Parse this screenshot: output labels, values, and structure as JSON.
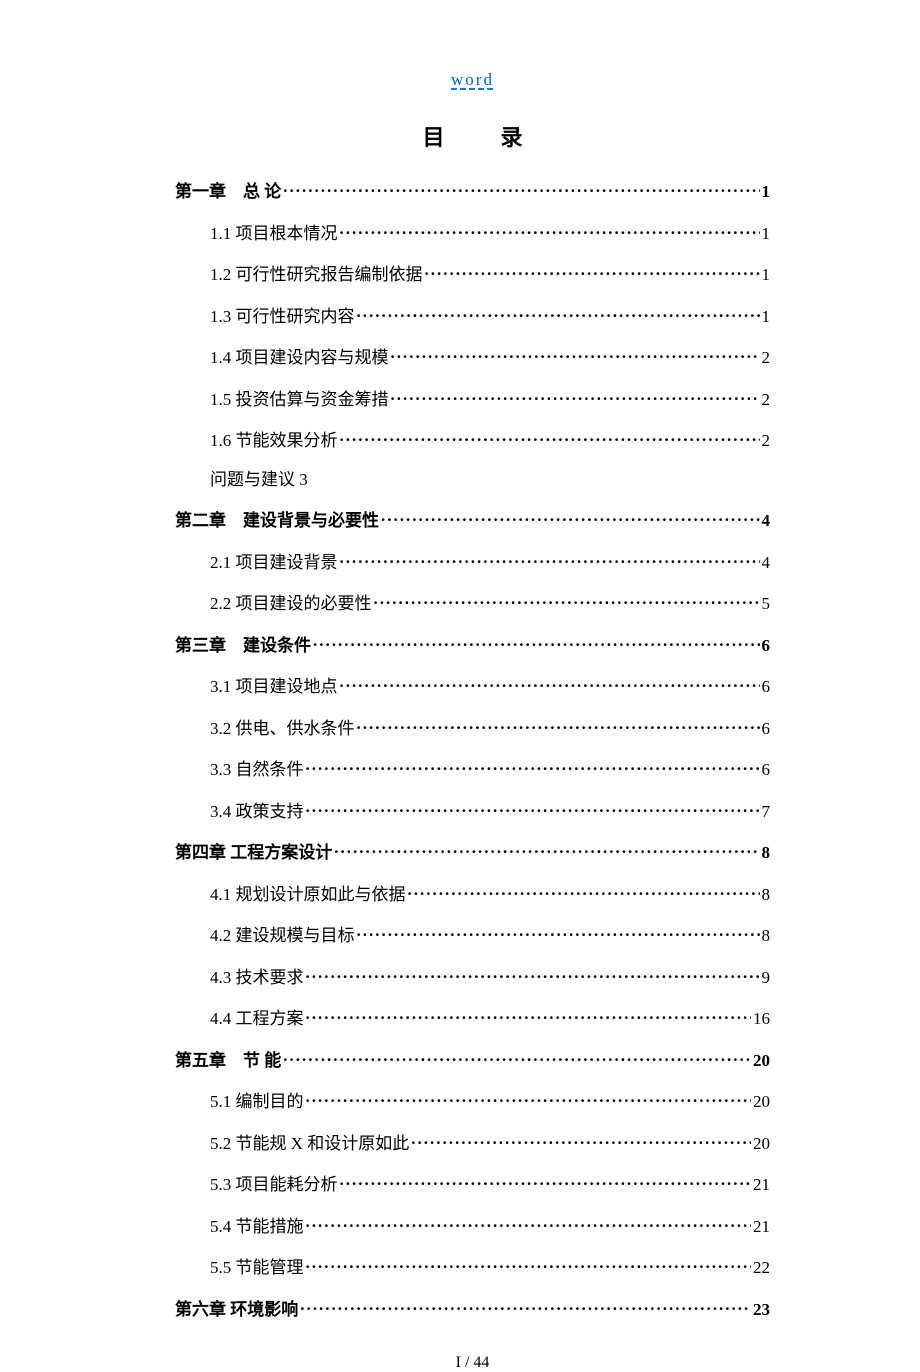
{
  "header": {
    "link_text": "word"
  },
  "title": {
    "char1": "目",
    "char2": "录"
  },
  "toc": [
    {
      "type": "chapter",
      "label": "第一章　总  论",
      "page": "1"
    },
    {
      "type": "section",
      "label": "1.1  项目根本情况",
      "page": "1"
    },
    {
      "type": "section",
      "label": "1.2  可行性研究报告编制依据",
      "page": "1"
    },
    {
      "type": "section",
      "label": "1.3  可行性研究内容",
      "page": "1"
    },
    {
      "type": "section",
      "label": "1.4  项目建设内容与规模",
      "page": "2"
    },
    {
      "type": "section",
      "label": "1.5  投资估算与资金筹措",
      "page": "2"
    },
    {
      "type": "section",
      "label": "1.6  节能效果分析",
      "page": "2"
    },
    {
      "type": "plain",
      "label": "问题与建议 3",
      "page": ""
    },
    {
      "type": "chapter",
      "label": "第二章　建设背景与必要性",
      "page": "4"
    },
    {
      "type": "section",
      "label": "2.1  项目建设背景",
      "page": "4"
    },
    {
      "type": "section",
      "label": "2.2  项目建设的必要性",
      "page": "5"
    },
    {
      "type": "chapter",
      "label": "第三章　建设条件",
      "page": "6"
    },
    {
      "type": "section",
      "label": "3.1  项目建设地点",
      "page": "6"
    },
    {
      "type": "section",
      "label": "3.2  供电、供水条件",
      "page": "6"
    },
    {
      "type": "section",
      "label": "3.3  自然条件",
      "page": "6"
    },
    {
      "type": "section",
      "label": "3.4  政策支持",
      "page": "7"
    },
    {
      "type": "chapter",
      "label": "第四章  工程方案设计",
      "page": "8"
    },
    {
      "type": "section",
      "label": "4.1  规划设计原如此与依据",
      "page": "8"
    },
    {
      "type": "section",
      "label": "4.2  建设规模与目标",
      "page": "8"
    },
    {
      "type": "section",
      "label": "4.3  技术要求",
      "page": "9"
    },
    {
      "type": "section",
      "label": "4.4  工程方案",
      "page": "16"
    },
    {
      "type": "chapter",
      "label": "第五章　节  能",
      "page": "20"
    },
    {
      "type": "section",
      "label": "5.1  编制目的",
      "page": "20"
    },
    {
      "type": "section",
      "label": "5.2  节能规 X 和设计原如此",
      "page": "20"
    },
    {
      "type": "section",
      "label": "5.3  项目能耗分析",
      "page": "21"
    },
    {
      "type": "section",
      "label": "5.4  节能措施",
      "page": "21"
    },
    {
      "type": "section",
      "label": "5.5  节能管理",
      "page": "22"
    },
    {
      "type": "chapter",
      "label": "第六章  环境影响",
      "page": "23"
    }
  ],
  "footer": {
    "text": "I  / 44"
  }
}
